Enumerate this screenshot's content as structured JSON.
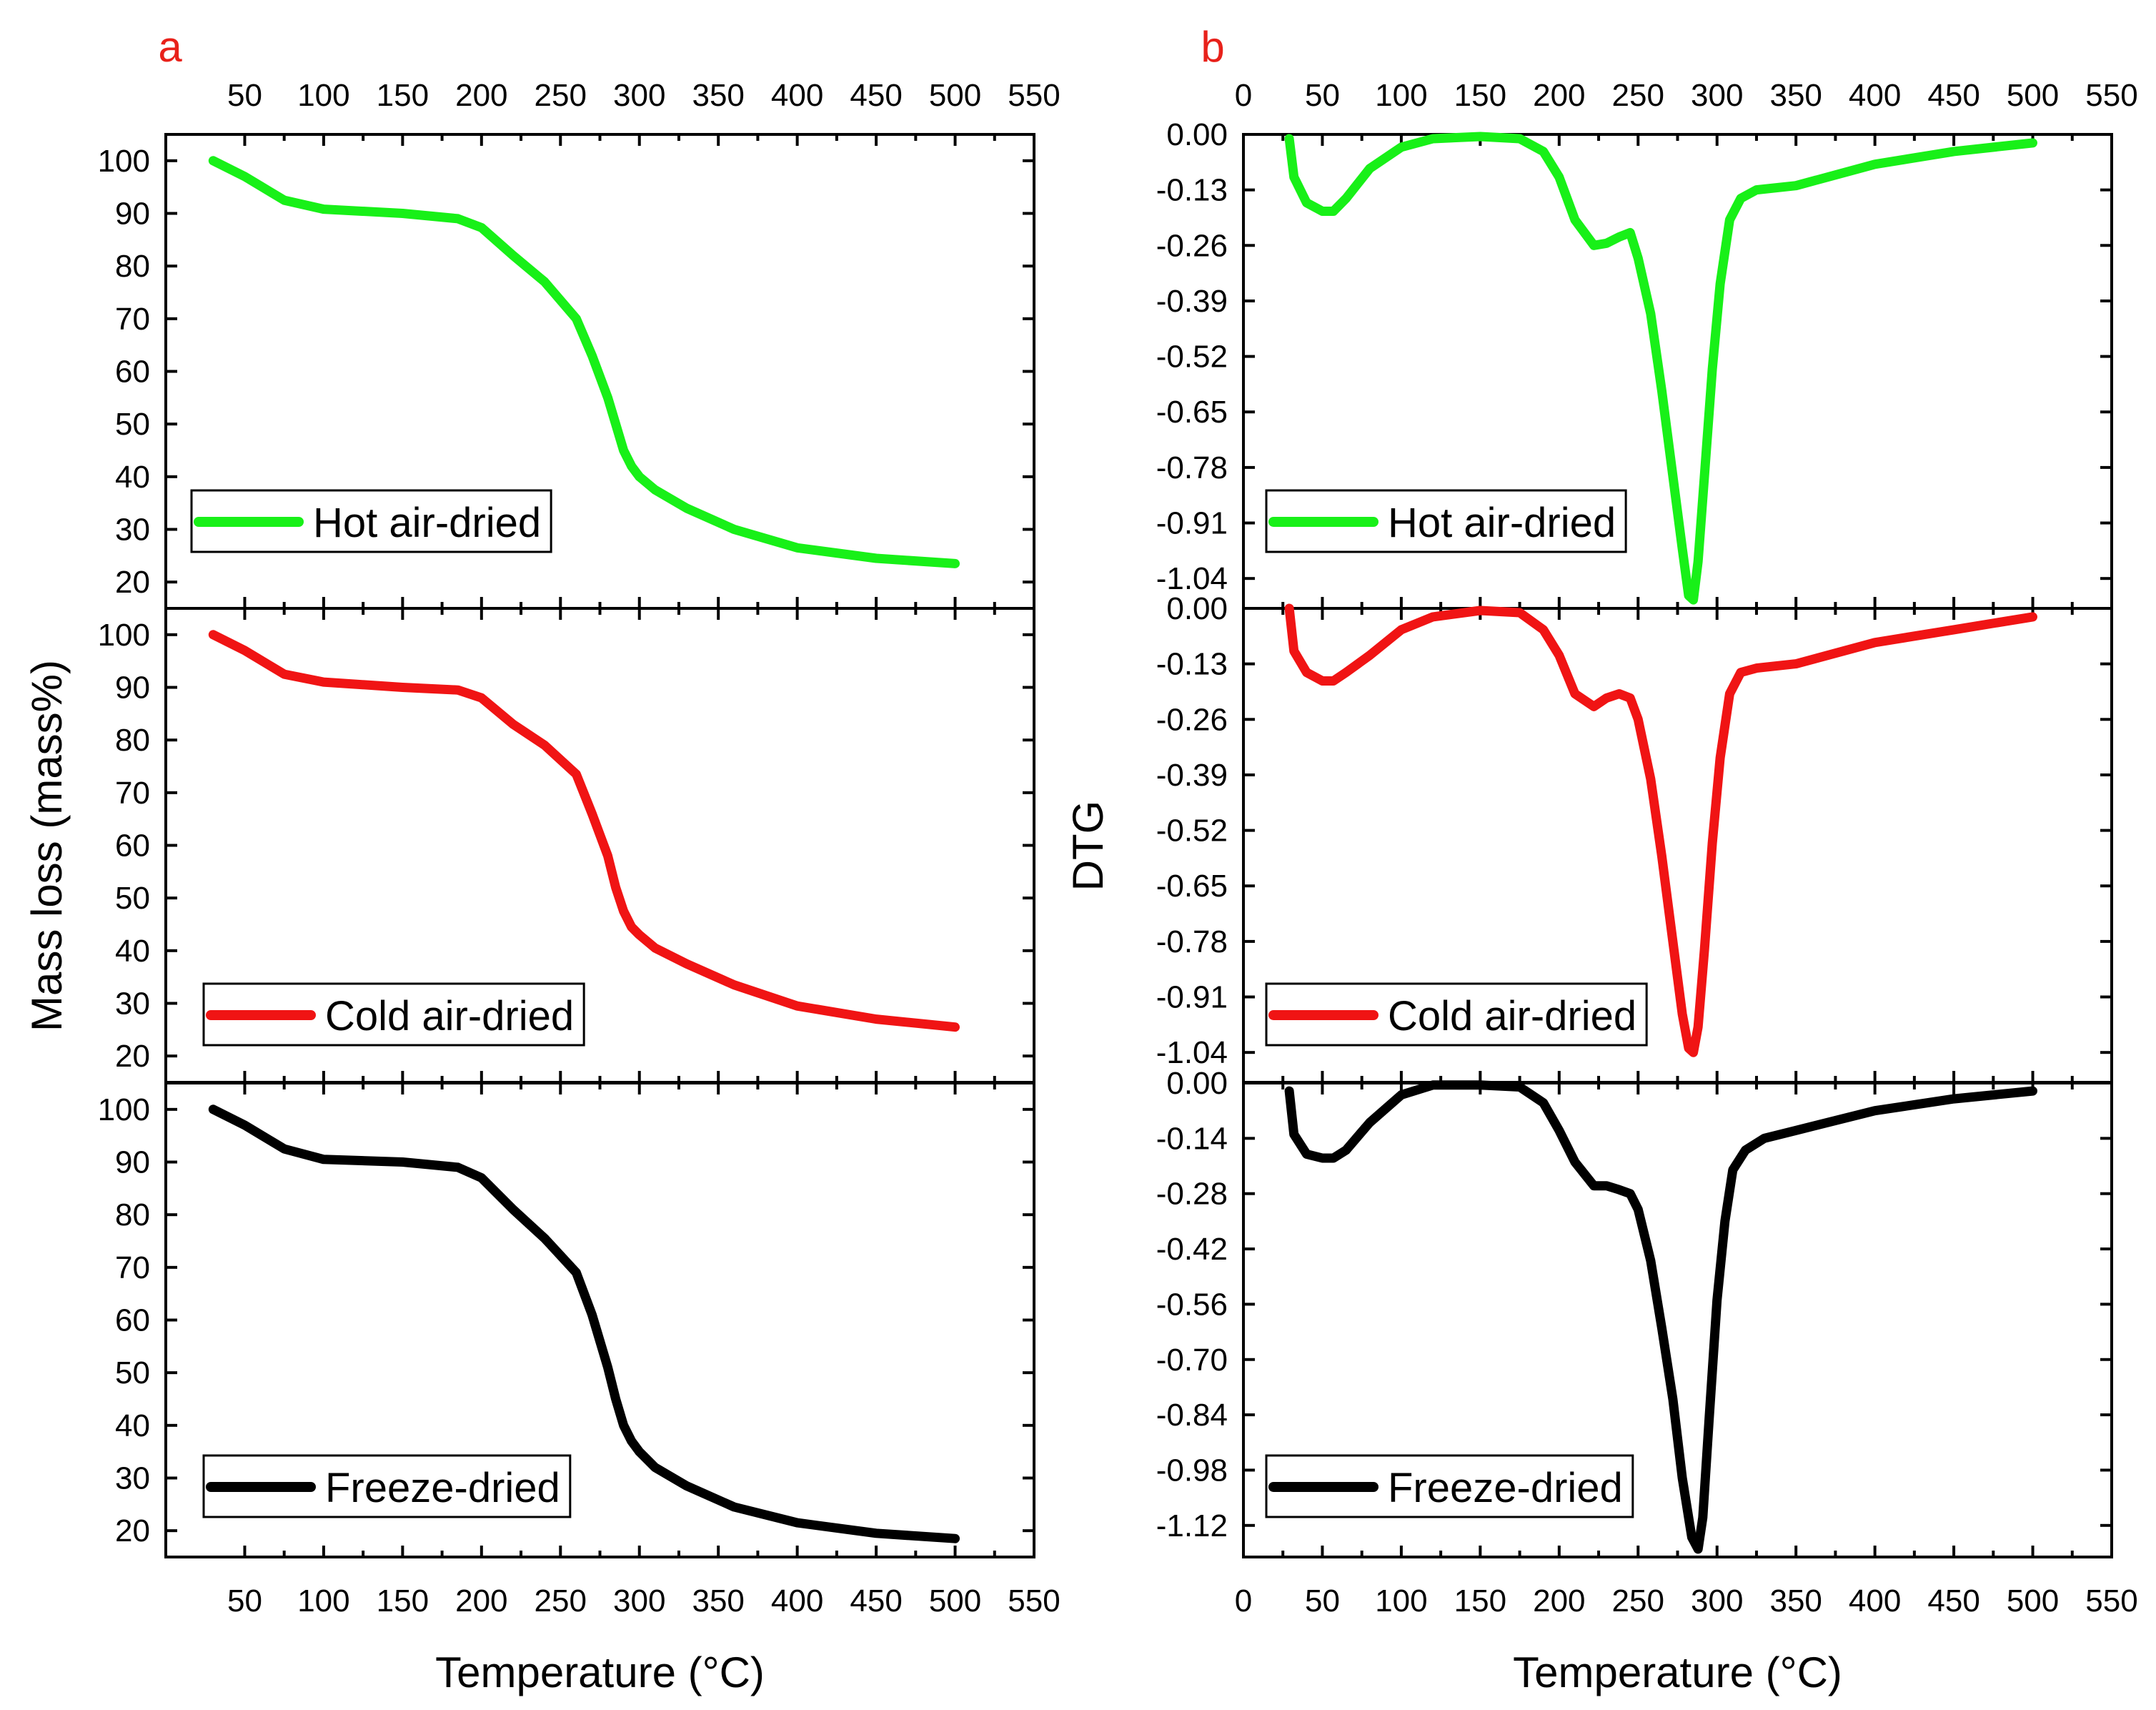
{
  "chart_data": [
    {
      "id": "a",
      "type": "line",
      "panel_label": "a",
      "xlabel": "Temperature (°C)",
      "ylabel": "Mass loss (mass%)",
      "xlim": [
        0,
        550
      ],
      "x_ticks": [
        50,
        100,
        150,
        200,
        250,
        300,
        350,
        400,
        450,
        500,
        550
      ],
      "x_tick_labels": [
        "50",
        "100",
        "150",
        "200",
        "250",
        "300",
        "350",
        "400",
        "450",
        "500",
        "550"
      ],
      "subplots": [
        {
          "name": "hot-air-dried",
          "legend": "Hot air-dried",
          "color": "#18f018",
          "ylim": [
            15,
            105
          ],
          "y_ticks": [
            20,
            30,
            40,
            50,
            60,
            70,
            80,
            90,
            100
          ],
          "y_tick_labels": [
            "20",
            "30",
            "40",
            "50",
            "60",
            "70",
            "80",
            "90",
            "100"
          ],
          "x": [
            30,
            50,
            75,
            100,
            150,
            185,
            200,
            220,
            240,
            260,
            270,
            280,
            285,
            290,
            295,
            300,
            310,
            330,
            360,
            400,
            450,
            500
          ],
          "y": [
            100,
            97,
            92.5,
            90.8,
            90,
            89,
            87.3,
            82,
            77,
            70,
            63,
            55,
            50,
            45,
            42,
            40,
            37.5,
            34,
            30,
            26.5,
            24.5,
            23.5
          ]
        },
        {
          "name": "cold-air-dried",
          "legend": "Cold air-dried",
          "color": "#f01414",
          "ylim": [
            15,
            105
          ],
          "y_ticks": [
            20,
            30,
            40,
            50,
            60,
            70,
            80,
            90,
            100
          ],
          "y_tick_labels": [
            "20",
            "30",
            "40",
            "50",
            "60",
            "70",
            "80",
            "90",
            "100"
          ],
          "x": [
            30,
            50,
            75,
            100,
            150,
            185,
            200,
            220,
            240,
            260,
            270,
            280,
            285,
            290,
            295,
            300,
            310,
            330,
            360,
            400,
            450,
            500
          ],
          "y": [
            100,
            97,
            92.5,
            91,
            90,
            89.5,
            88,
            83,
            79,
            73.5,
            66,
            58,
            52,
            47.5,
            44.5,
            43,
            40.5,
            37.5,
            33.5,
            29.5,
            27,
            25.5
          ]
        },
        {
          "name": "freeze-dried",
          "legend": "Freeze-dried",
          "color": "#000000",
          "ylim": [
            15,
            105
          ],
          "y_ticks": [
            20,
            30,
            40,
            50,
            60,
            70,
            80,
            90,
            100
          ],
          "y_tick_labels": [
            "20",
            "30",
            "40",
            "50",
            "60",
            "70",
            "80",
            "90",
            "100"
          ],
          "x": [
            30,
            50,
            75,
            100,
            150,
            185,
            200,
            220,
            240,
            260,
            270,
            280,
            285,
            290,
            295,
            300,
            310,
            330,
            360,
            400,
            450,
            500
          ],
          "y": [
            100,
            97,
            92.5,
            90.5,
            90,
            89,
            87,
            81,
            75.5,
            69,
            61,
            51,
            45,
            40,
            37,
            35,
            32,
            28.5,
            24.5,
            21.5,
            19.5,
            18.5
          ]
        }
      ]
    },
    {
      "id": "b",
      "type": "line",
      "panel_label": "b",
      "xlabel": "Temperature (°C)",
      "ylabel": "DTG",
      "xlim": [
        0,
        550
      ],
      "x_ticks": [
        0,
        50,
        100,
        150,
        200,
        250,
        300,
        350,
        400,
        450,
        500,
        550
      ],
      "x_tick_labels": [
        "0",
        "50",
        "100",
        "150",
        "200",
        "250",
        "300",
        "350",
        "400",
        "450",
        "500",
        "550"
      ],
      "subplots": [
        {
          "name": "hot-air-dried",
          "legend": "Hot air-dried",
          "color": "#18f018",
          "ylim": [
            -1.11,
            0.0
          ],
          "y_ticks": [
            0.0,
            -0.13,
            -0.26,
            -0.39,
            -0.52,
            -0.65,
            -0.78,
            -0.91,
            -1.04
          ],
          "y_tick_labels": [
            "0.00",
            "-0.13",
            "-0.26",
            "-0.39",
            "-0.52",
            "-0.65",
            "-0.78",
            "-0.91",
            "-1.04"
          ],
          "x": [
            29,
            32,
            40,
            50,
            57,
            65,
            80,
            100,
            120,
            150,
            175,
            190,
            200,
            210,
            222,
            230,
            238,
            245,
            250,
            258,
            265,
            272,
            278,
            282,
            285,
            288,
            292,
            297,
            302,
            308,
            315,
            325,
            350,
            400,
            450,
            500
          ],
          "y": [
            -0.01,
            -0.1,
            -0.16,
            -0.18,
            -0.18,
            -0.15,
            -0.08,
            -0.03,
            -0.01,
            -0.005,
            -0.01,
            -0.04,
            -0.1,
            -0.2,
            -0.26,
            -0.255,
            -0.24,
            -0.23,
            -0.29,
            -0.42,
            -0.6,
            -0.8,
            -0.97,
            -1.08,
            -1.09,
            -1.0,
            -0.8,
            -0.55,
            -0.35,
            -0.2,
            -0.15,
            -0.13,
            -0.12,
            -0.07,
            -0.04,
            -0.02
          ]
        },
        {
          "name": "cold-air-dried",
          "legend": "Cold air-dried",
          "color": "#f01414",
          "ylim": [
            -1.11,
            0.0
          ],
          "y_ticks": [
            0.0,
            -0.13,
            -0.26,
            -0.39,
            -0.52,
            -0.65,
            -0.78,
            -0.91,
            -1.04
          ],
          "y_tick_labels": [
            "0.00",
            "-0.13",
            "-0.26",
            "-0.39",
            "-0.52",
            "-0.65",
            "-0.78",
            "-0.91",
            "-1.04"
          ],
          "x": [
            29,
            32,
            40,
            50,
            57,
            65,
            80,
            100,
            120,
            150,
            175,
            190,
            200,
            210,
            222,
            230,
            238,
            245,
            250,
            258,
            265,
            272,
            278,
            282,
            285,
            288,
            292,
            297,
            302,
            308,
            315,
            325,
            350,
            400,
            450,
            500
          ],
          "y": [
            0.0,
            -0.1,
            -0.15,
            -0.17,
            -0.17,
            -0.15,
            -0.11,
            -0.05,
            -0.02,
            -0.005,
            -0.01,
            -0.05,
            -0.11,
            -0.2,
            -0.23,
            -0.21,
            -0.2,
            -0.21,
            -0.26,
            -0.4,
            -0.58,
            -0.78,
            -0.95,
            -1.03,
            -1.04,
            -0.98,
            -0.8,
            -0.55,
            -0.35,
            -0.2,
            -0.15,
            -0.14,
            -0.13,
            -0.08,
            -0.05,
            -0.02
          ]
        },
        {
          "name": "freeze-dried",
          "legend": "Freeze-dried",
          "color": "#000000",
          "ylim": [
            -1.2,
            0.0
          ],
          "y_ticks": [
            0.0,
            -0.14,
            -0.28,
            -0.42,
            -0.56,
            -0.7,
            -0.84,
            -0.98,
            -1.12
          ],
          "y_tick_labels": [
            "0.00",
            "-0.14",
            "-0.28",
            "-0.42",
            "-0.56",
            "-0.70",
            "-0.84",
            "-0.98",
            "-1.12"
          ],
          "x": [
            29,
            32,
            40,
            50,
            57,
            65,
            80,
            100,
            120,
            150,
            175,
            190,
            200,
            210,
            222,
            230,
            238,
            245,
            250,
            258,
            265,
            272,
            278,
            284,
            288,
            291,
            295,
            300,
            305,
            310,
            318,
            330,
            350,
            400,
            450,
            500
          ],
          "y": [
            -0.02,
            -0.13,
            -0.18,
            -0.19,
            -0.19,
            -0.17,
            -0.1,
            -0.03,
            -0.005,
            -0.005,
            -0.01,
            -0.05,
            -0.12,
            -0.2,
            -0.26,
            -0.26,
            -0.27,
            -0.28,
            -0.32,
            -0.45,
            -0.62,
            -0.8,
            -1.0,
            -1.15,
            -1.18,
            -1.1,
            -0.85,
            -0.55,
            -0.35,
            -0.22,
            -0.17,
            -0.14,
            -0.12,
            -0.07,
            -0.04,
            -0.02
          ]
        }
      ]
    }
  ]
}
